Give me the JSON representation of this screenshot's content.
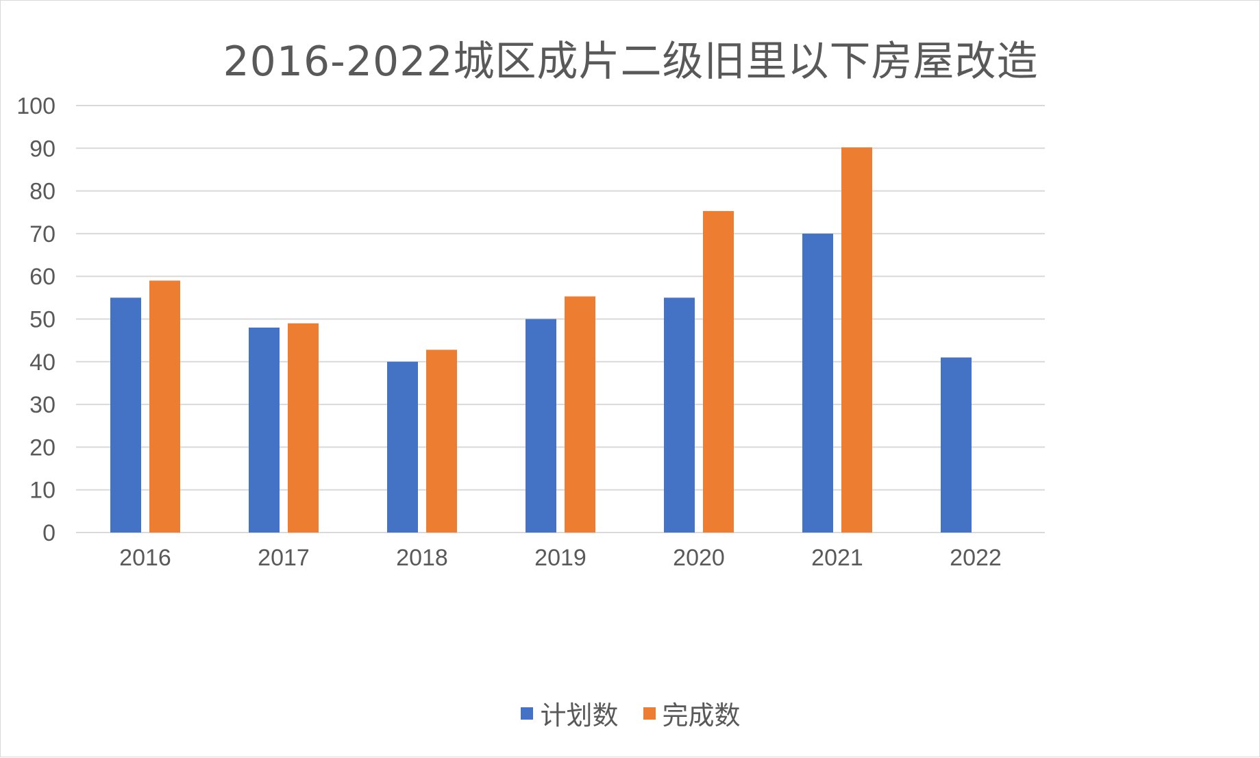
{
  "colors": {
    "planned": "#4472C4",
    "completed": "#ED7D31",
    "grid": "#d9d9d9",
    "text": "#595959"
  },
  "chart_data": {
    "type": "bar",
    "title": "2016-2022城区成片二级旧里以下房屋改造",
    "categories": [
      "2016",
      "2017",
      "2018",
      "2019",
      "2020",
      "2021",
      "2022"
    ],
    "series": [
      {
        "name": "计划数",
        "values": [
          55,
          48,
          40,
          50,
          55,
          70,
          41
        ]
      },
      {
        "name": "完成数",
        "values": [
          59,
          49,
          42.8,
          55.3,
          75.3,
          90.2,
          null
        ]
      }
    ],
    "ylim": [
      0,
      100
    ],
    "yticks": [
      0,
      10,
      20,
      30,
      40,
      50,
      60,
      70,
      80,
      90,
      100
    ],
    "grid": true,
    "legend_position": "bottom"
  }
}
